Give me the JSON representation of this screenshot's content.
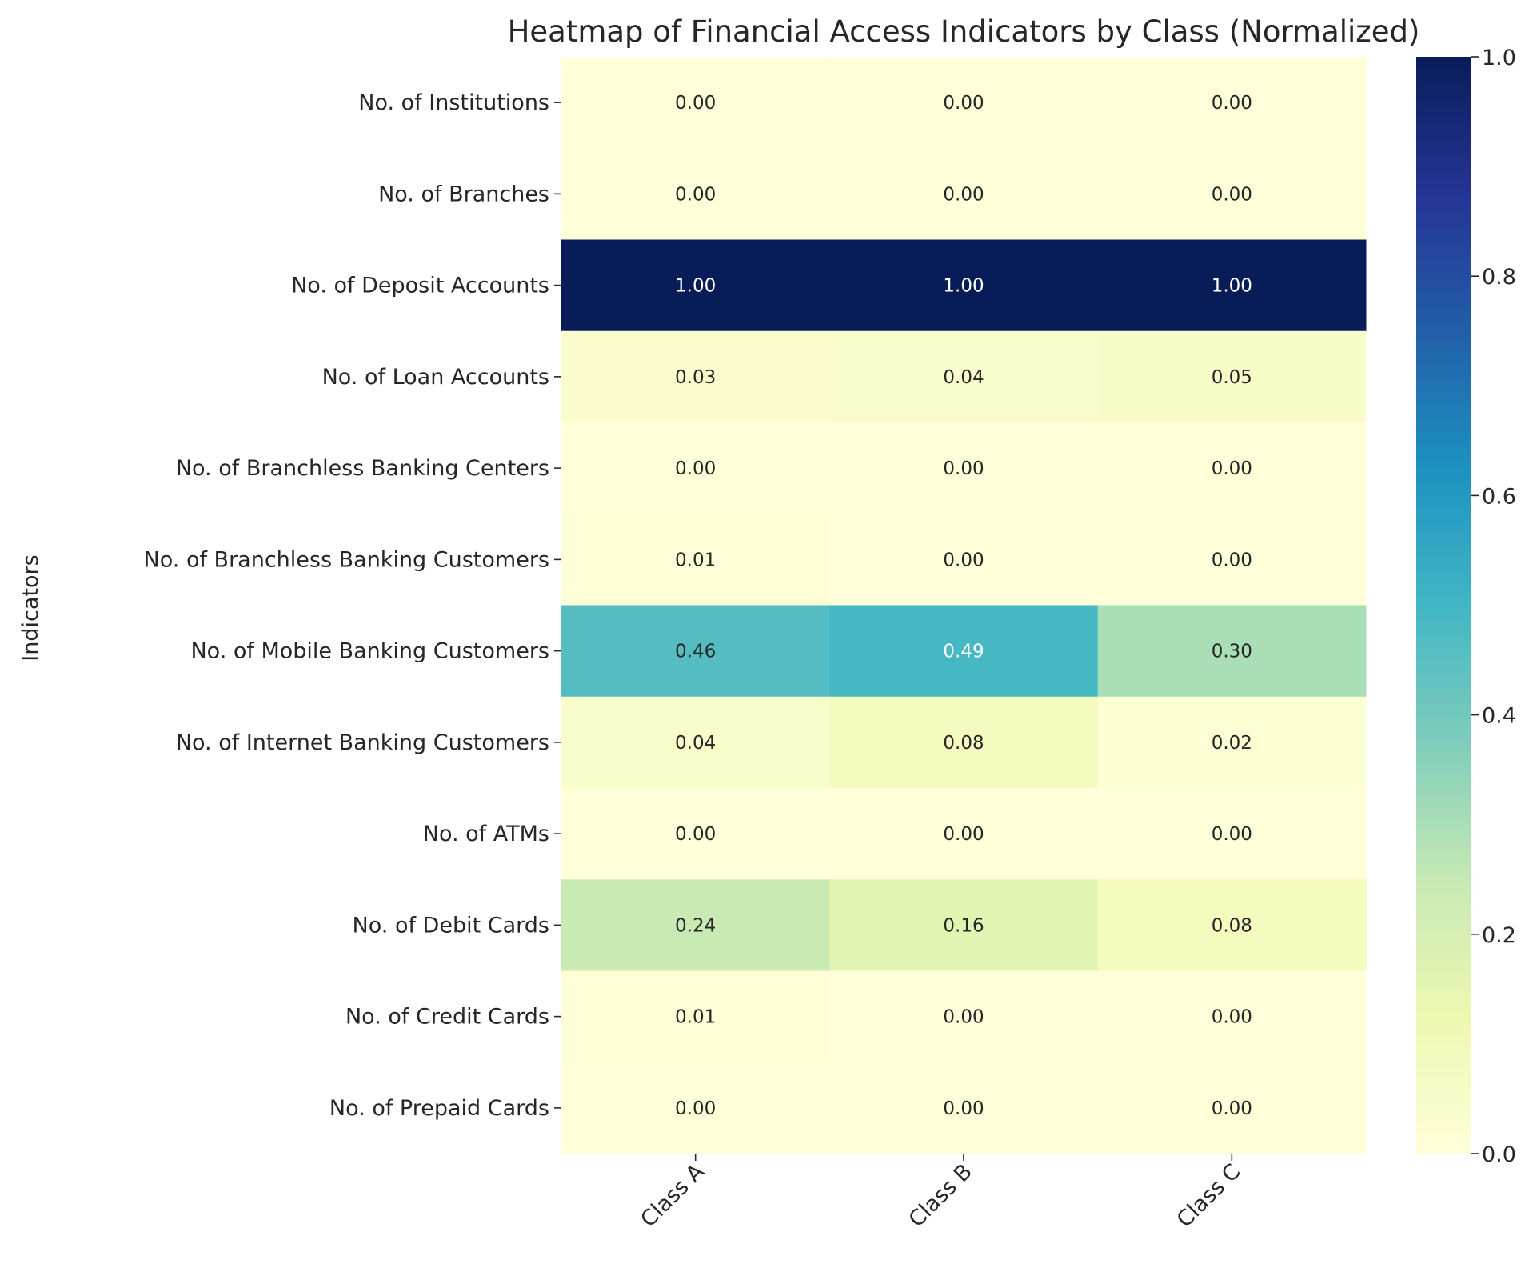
{
  "chart_data": {
    "type": "heatmap",
    "title": "Heatmap of Financial Access Indicators by Class (Normalized)",
    "xlabel": "",
    "ylabel": "Indicators",
    "columns": [
      "Class A",
      "Class B",
      "Class C"
    ],
    "rows": [
      "No. of Institutions",
      "No. of Branches",
      "No. of Deposit Accounts",
      "No. of Loan Accounts",
      "No. of Branchless Banking Centers",
      "No. of Branchless Banking Customers",
      "No. of Mobile Banking Customers",
      "No. of Internet Banking Customers",
      "No. of ATMs",
      "No. of Debit Cards",
      "No. of Credit Cards",
      "No. of Prepaid Cards"
    ],
    "values": [
      [
        0.0,
        0.0,
        0.0
      ],
      [
        0.0,
        0.0,
        0.0
      ],
      [
        1.0,
        1.0,
        1.0
      ],
      [
        0.03,
        0.04,
        0.05
      ],
      [
        0.0,
        0.0,
        0.0
      ],
      [
        0.01,
        0.0,
        0.0
      ],
      [
        0.46,
        0.49,
        0.3
      ],
      [
        0.04,
        0.08,
        0.02
      ],
      [
        0.0,
        0.0,
        0.0
      ],
      [
        0.24,
        0.16,
        0.08
      ],
      [
        0.01,
        0.0,
        0.0
      ],
      [
        0.0,
        0.0,
        0.0
      ]
    ],
    "annotation_format": "0.00",
    "colormap": "YlGnBu",
    "colormap_stops": [
      "#ffffd9",
      "#edf8b1",
      "#c7e9b4",
      "#7fcdbb",
      "#41b6c4",
      "#1d91c0",
      "#225ea8",
      "#253494",
      "#081d58"
    ],
    "colorbar": {
      "range": [
        0,
        1
      ],
      "ticks": [
        "0.0",
        "0.2",
        "0.4",
        "0.6",
        "0.8",
        "1.0"
      ]
    }
  }
}
